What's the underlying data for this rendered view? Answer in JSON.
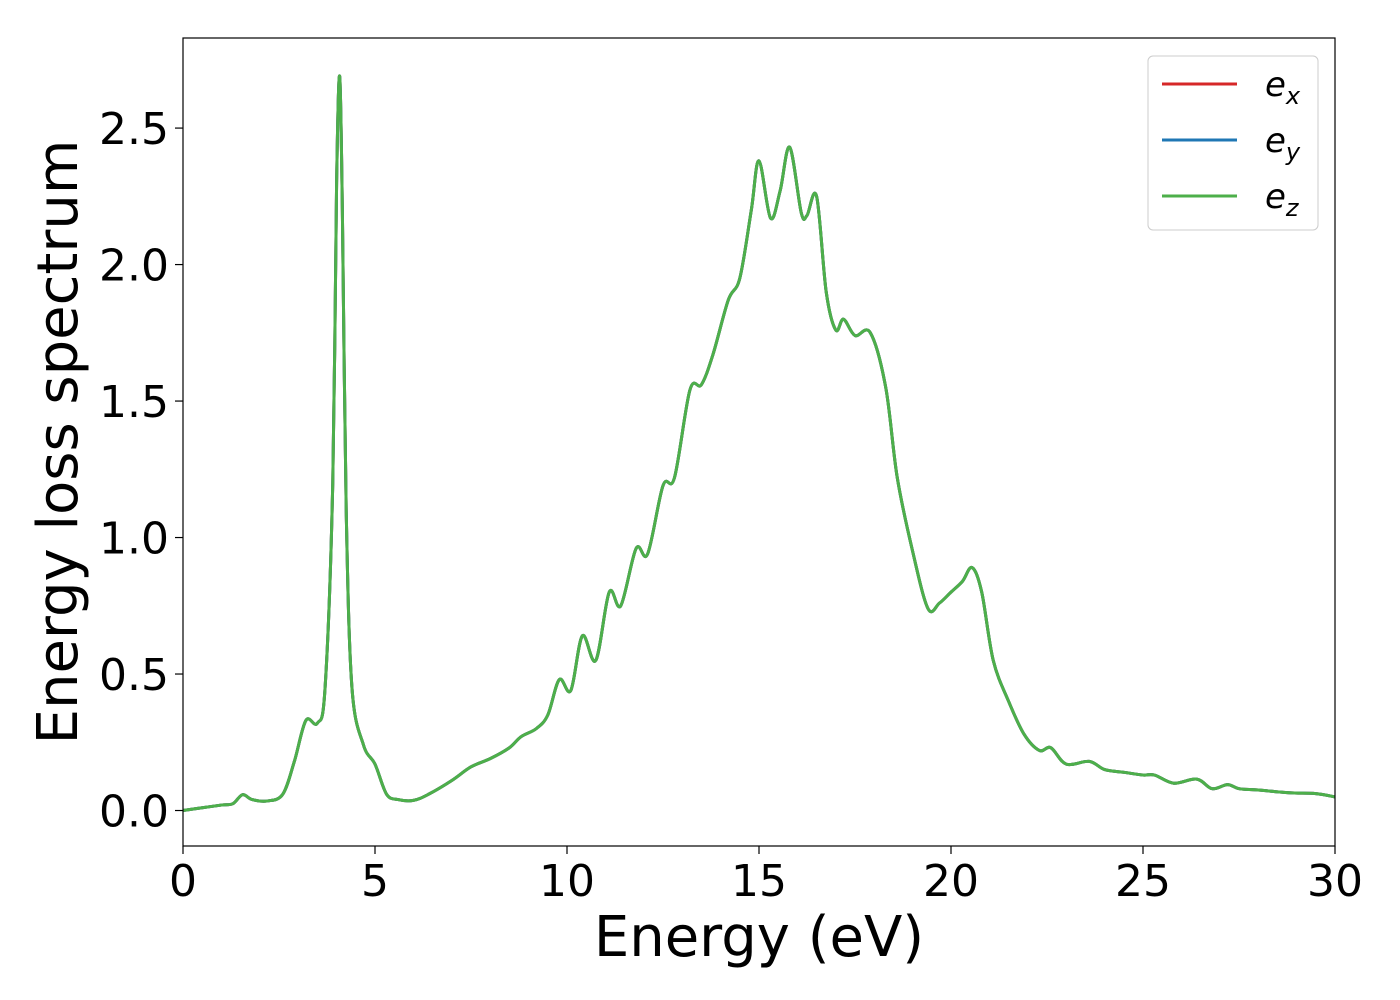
{
  "chart_data": {
    "type": "line",
    "title": "",
    "xlabel": "Energy (eV)",
    "ylabel": "Energy loss spectrum",
    "xlim": [
      0,
      30
    ],
    "ylim": [
      -0.13,
      2.83
    ],
    "xticks": [
      0,
      5,
      10,
      15,
      20,
      25,
      30
    ],
    "xtick_labels": [
      "0",
      "5",
      "10",
      "15",
      "20",
      "25",
      "30"
    ],
    "yticks": [
      0.0,
      0.5,
      1.0,
      1.5,
      2.0,
      2.5
    ],
    "ytick_labels": [
      "0.0",
      "0.5",
      "1.0",
      "1.5",
      "2.0",
      "2.5"
    ],
    "grid": false,
    "legend_position": "top-right",
    "x": [
      0,
      0.5,
      1.0,
      1.3,
      1.55,
      1.8,
      2.2,
      2.6,
      2.9,
      3.2,
      3.5,
      3.7,
      3.9,
      4.0,
      4.08,
      4.15,
      4.25,
      4.4,
      4.7,
      5.0,
      5.3,
      5.6,
      6.0,
      6.4,
      7.0,
      7.5,
      8.0,
      8.5,
      8.8,
      9.2,
      9.5,
      9.8,
      10.1,
      10.4,
      10.75,
      11.1,
      11.4,
      11.8,
      12.1,
      12.5,
      12.8,
      13.2,
      13.5,
      13.8,
      14.2,
      14.5,
      14.8,
      15.0,
      15.3,
      15.55,
      15.8,
      16.1,
      16.25,
      16.5,
      16.75,
      17.0,
      17.2,
      17.5,
      17.9,
      18.3,
      18.6,
      19.0,
      19.4,
      19.7,
      20.0,
      20.3,
      20.55,
      20.8,
      21.1,
      21.5,
      21.9,
      22.3,
      22.6,
      23.0,
      23.6,
      24.0,
      24.5,
      25.0,
      25.3,
      25.8,
      26.4,
      26.8,
      27.2,
      27.5,
      28.0,
      28.8,
      29.5,
      30.0
    ],
    "series": [
      {
        "name": "e_x",
        "color": "#d62728",
        "values": [
          0.0,
          0.01,
          0.02,
          0.025,
          0.058,
          0.04,
          0.035,
          0.06,
          0.18,
          0.33,
          0.32,
          0.45,
          1.2,
          2.3,
          2.69,
          2.2,
          1.1,
          0.45,
          0.24,
          0.17,
          0.06,
          0.04,
          0.037,
          0.06,
          0.11,
          0.16,
          0.19,
          0.23,
          0.27,
          0.3,
          0.35,
          0.48,
          0.44,
          0.64,
          0.55,
          0.8,
          0.75,
          0.96,
          0.94,
          1.19,
          1.22,
          1.54,
          1.56,
          1.67,
          1.87,
          1.95,
          2.2,
          2.38,
          2.17,
          2.27,
          2.43,
          2.19,
          2.18,
          2.25,
          1.9,
          1.76,
          1.8,
          1.74,
          1.75,
          1.55,
          1.22,
          0.95,
          0.74,
          0.76,
          0.8,
          0.84,
          0.89,
          0.8,
          0.55,
          0.4,
          0.28,
          0.22,
          0.23,
          0.17,
          0.18,
          0.15,
          0.14,
          0.13,
          0.13,
          0.1,
          0.115,
          0.08,
          0.095,
          0.08,
          0.075,
          0.065,
          0.062,
          0.05
        ]
      },
      {
        "name": "e_y",
        "color": "#1f77b4",
        "values": [
          0.0,
          0.01,
          0.02,
          0.025,
          0.058,
          0.04,
          0.035,
          0.06,
          0.18,
          0.33,
          0.32,
          0.45,
          1.2,
          2.3,
          2.69,
          2.2,
          1.1,
          0.45,
          0.24,
          0.17,
          0.06,
          0.04,
          0.037,
          0.06,
          0.11,
          0.16,
          0.19,
          0.23,
          0.27,
          0.3,
          0.35,
          0.48,
          0.44,
          0.64,
          0.55,
          0.8,
          0.75,
          0.96,
          0.94,
          1.19,
          1.22,
          1.54,
          1.56,
          1.67,
          1.87,
          1.95,
          2.2,
          2.38,
          2.17,
          2.27,
          2.43,
          2.19,
          2.18,
          2.25,
          1.9,
          1.76,
          1.8,
          1.74,
          1.75,
          1.55,
          1.22,
          0.95,
          0.74,
          0.76,
          0.8,
          0.84,
          0.89,
          0.8,
          0.55,
          0.4,
          0.28,
          0.22,
          0.23,
          0.17,
          0.18,
          0.15,
          0.14,
          0.13,
          0.13,
          0.1,
          0.115,
          0.08,
          0.095,
          0.08,
          0.075,
          0.065,
          0.062,
          0.05
        ]
      },
      {
        "name": "e_z",
        "color": "#4daf4a",
        "values": [
          0.0,
          0.01,
          0.02,
          0.025,
          0.058,
          0.04,
          0.035,
          0.06,
          0.18,
          0.33,
          0.32,
          0.45,
          1.2,
          2.3,
          2.69,
          2.2,
          1.1,
          0.45,
          0.24,
          0.17,
          0.06,
          0.04,
          0.037,
          0.06,
          0.11,
          0.16,
          0.19,
          0.23,
          0.27,
          0.3,
          0.35,
          0.48,
          0.44,
          0.64,
          0.55,
          0.8,
          0.75,
          0.96,
          0.94,
          1.19,
          1.22,
          1.54,
          1.56,
          1.67,
          1.87,
          1.95,
          2.2,
          2.38,
          2.17,
          2.27,
          2.43,
          2.19,
          2.18,
          2.25,
          1.9,
          1.76,
          1.8,
          1.74,
          1.75,
          1.55,
          1.22,
          0.95,
          0.74,
          0.76,
          0.8,
          0.84,
          0.89,
          0.8,
          0.55,
          0.4,
          0.28,
          0.22,
          0.23,
          0.17,
          0.18,
          0.15,
          0.14,
          0.13,
          0.13,
          0.1,
          0.115,
          0.08,
          0.095,
          0.08,
          0.075,
          0.065,
          0.062,
          0.05
        ]
      }
    ],
    "legend": [
      {
        "base": "e",
        "sub": "x",
        "color": "#d62728"
      },
      {
        "base": "e",
        "sub": "y",
        "color": "#1f77b4"
      },
      {
        "base": "e",
        "sub": "z",
        "color": "#4daf4a"
      }
    ]
  }
}
